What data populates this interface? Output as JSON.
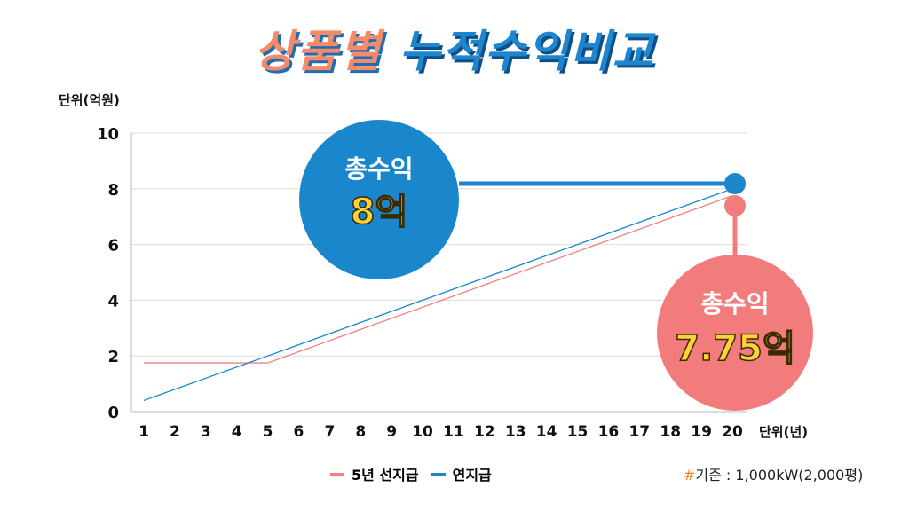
{
  "title_part1": "상품별",
  "title_part2": "누적수익비교",
  "y_unit": "단위(억원)",
  "x_unit": "단위(년)",
  "note_hash": "#",
  "note_text": "기준 : 1,000kW(2,000평)",
  "callouts": [
    {
      "label": "총수익",
      "value": "8억",
      "color": "#1a86cc"
    },
    {
      "label": "총수익",
      "value": "7.75억",
      "color": "#f27b7b"
    }
  ],
  "chart_data": {
    "type": "line",
    "title": "상품별 누적수익비교",
    "xlabel": "단위(년)",
    "ylabel": "단위(억원)",
    "x": [
      1,
      2,
      3,
      4,
      5,
      6,
      7,
      8,
      9,
      10,
      11,
      12,
      13,
      14,
      15,
      16,
      17,
      18,
      19,
      20
    ],
    "yticks": [
      0,
      2,
      4,
      6,
      8,
      10
    ],
    "ylim": [
      0,
      10
    ],
    "grid": true,
    "legend": "bottom",
    "series": [
      {
        "name": "5년 선지급",
        "color": "#f08080",
        "values": [
          1.75,
          1.75,
          1.75,
          1.75,
          1.75,
          2.15,
          2.55,
          2.95,
          3.35,
          3.75,
          4.15,
          4.55,
          4.95,
          5.35,
          5.75,
          6.15,
          6.55,
          6.95,
          7.35,
          7.75
        ]
      },
      {
        "name": "연지급",
        "color": "#1a86cc",
        "values": [
          0.4,
          0.8,
          1.2,
          1.6,
          2.0,
          2.4,
          2.8,
          3.2,
          3.6,
          4.0,
          4.4,
          4.8,
          5.2,
          5.6,
          6.0,
          6.4,
          6.8,
          7.2,
          7.6,
          8.0
        ]
      }
    ]
  }
}
